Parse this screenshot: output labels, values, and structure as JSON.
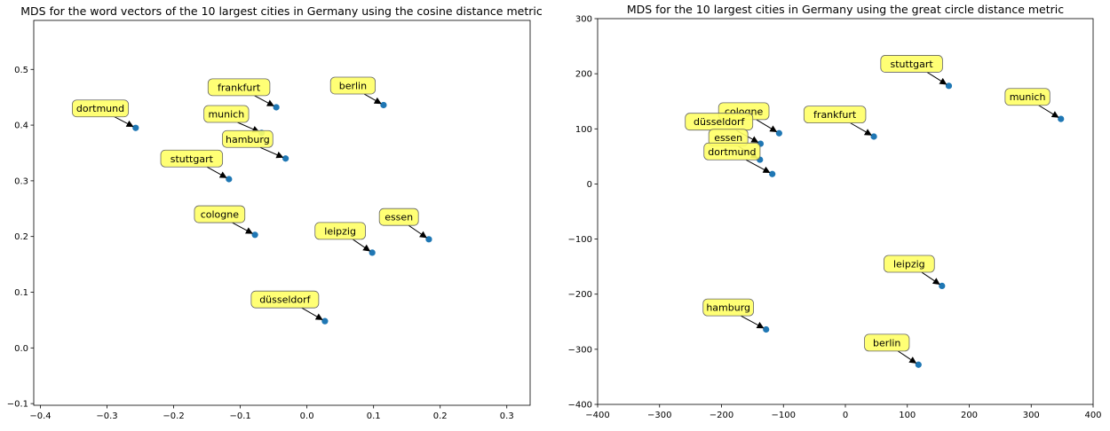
{
  "chart_data": [
    {
      "type": "scatter",
      "title": "MDS for the word vectors of the 10 largest cities in Germany using the cosine distance metric",
      "xlabel": "",
      "ylabel": "",
      "xlim": [
        -0.41,
        0.335
      ],
      "ylim": [
        -0.103,
        0.588
      ],
      "xticks": [
        -0.4,
        -0.3,
        -0.2,
        -0.1,
        0.0,
        0.1,
        0.2,
        0.3
      ],
      "xtick_labels": [
        "−0.4",
        "−0.3",
        "−0.2",
        "−0.1",
        "0.0",
        "0.1",
        "0.2",
        "0.3"
      ],
      "yticks": [
        -0.1,
        0.0,
        0.1,
        0.2,
        0.3,
        0.4,
        0.5
      ],
      "ytick_labels": [
        "−0.1",
        "0.0",
        "0.1",
        "0.2",
        "0.3",
        "0.4",
        "0.5"
      ],
      "grid": false,
      "marker_color": "#1f77b4",
      "label_box_color": "#ffff66",
      "points": [
        {
          "label": "dortmund",
          "x": -0.257,
          "y": 0.395,
          "label_x": -0.31,
          "label_y": 0.43
        },
        {
          "label": "frankfurt",
          "x": -0.046,
          "y": 0.432,
          "label_x": -0.102,
          "label_y": 0.468
        },
        {
          "label": "berlin",
          "x": 0.115,
          "y": 0.436,
          "label_x": 0.069,
          "label_y": 0.471
        },
        {
          "label": "munich",
          "x": -0.068,
          "y": 0.386,
          "label_x": -0.121,
          "label_y": 0.42
        },
        {
          "label": "hamburg",
          "x": -0.032,
          "y": 0.34,
          "label_x": -0.089,
          "label_y": 0.375
        },
        {
          "label": "stuttgart",
          "x": -0.117,
          "y": 0.303,
          "label_x": -0.173,
          "label_y": 0.34
        },
        {
          "label": "cologne",
          "x": -0.078,
          "y": 0.203,
          "label_x": -0.131,
          "label_y": 0.24
        },
        {
          "label": "leipzig",
          "x": 0.098,
          "y": 0.171,
          "label_x": 0.05,
          "label_y": 0.21
        },
        {
          "label": "essen",
          "x": 0.183,
          "y": 0.195,
          "label_x": 0.138,
          "label_y": 0.235
        },
        {
          "label": "düsseldorf",
          "x": 0.027,
          "y": 0.048,
          "label_x": -0.033,
          "label_y": 0.087
        }
      ]
    },
    {
      "type": "scatter",
      "title": "MDS for the 10 largest cities in Germany using the great circle distance metric",
      "xlabel": "",
      "ylabel": "",
      "xlim": [
        -400,
        400
      ],
      "ylim": [
        -400,
        300
      ],
      "xticks": [
        -400,
        -300,
        -200,
        -100,
        0,
        100,
        200,
        300,
        400
      ],
      "xtick_labels": [
        "−400",
        "−300",
        "−200",
        "−100",
        "0",
        "100",
        "200",
        "300",
        "400"
      ],
      "yticks": [
        -400,
        -300,
        -200,
        -100,
        0,
        100,
        200,
        300
      ],
      "ytick_labels": [
        "−400",
        "−300",
        "−200",
        "−100",
        "0",
        "100",
        "200",
        "300"
      ],
      "grid": false,
      "marker_color": "#1f77b4",
      "label_box_color": "#ffff66",
      "points": [
        {
          "label": "stuttgart",
          "x": 167,
          "y": 178,
          "label_x": 107,
          "label_y": 218
        },
        {
          "label": "munich",
          "x": 348,
          "y": 118,
          "label_x": 294,
          "label_y": 158
        },
        {
          "label": "cologne",
          "x": -107,
          "y": 92,
          "label_x": -164,
          "label_y": 132
        },
        {
          "label": "frankfurt",
          "x": 46,
          "y": 86,
          "label_x": -17,
          "label_y": 126
        },
        {
          "label": "düsseldorf",
          "x": -137,
          "y": 73,
          "label_x": -204,
          "label_y": 113
        },
        {
          "label": "essen",
          "x": -138,
          "y": 44,
          "label_x": -189,
          "label_y": 84
        },
        {
          "label": "dortmund",
          "x": -118,
          "y": 18,
          "label_x": -183,
          "label_y": 59
        },
        {
          "label": "leipzig",
          "x": 156,
          "y": -185,
          "label_x": 103,
          "label_y": -145
        },
        {
          "label": "hamburg",
          "x": -128,
          "y": -264,
          "label_x": -189,
          "label_y": -224
        },
        {
          "label": "berlin",
          "x": 118,
          "y": -328,
          "label_x": 67,
          "label_y": -288
        }
      ]
    }
  ]
}
